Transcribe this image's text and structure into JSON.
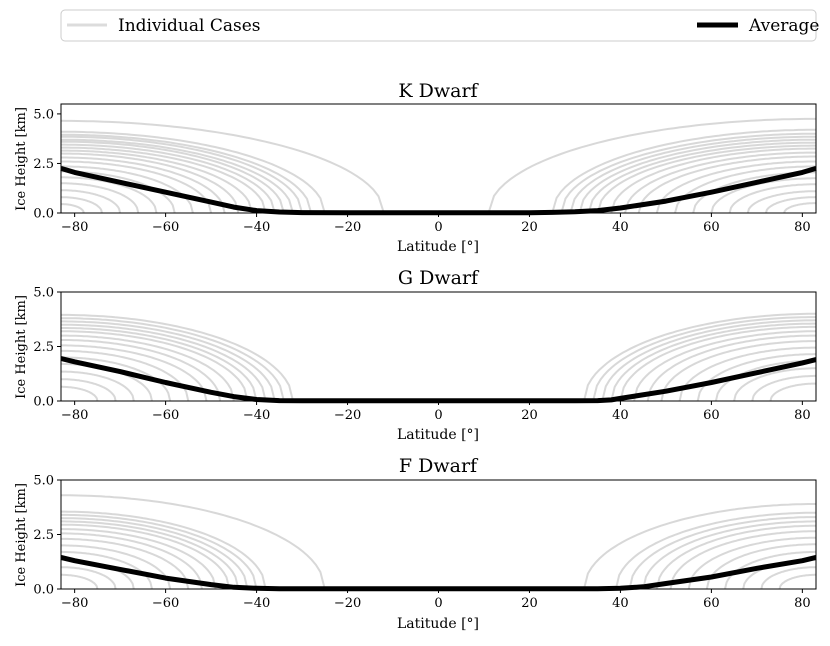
{
  "legend": {
    "individual_label": "Individual Cases",
    "average_label": "Average",
    "individual_color": "#c8c8c8",
    "average_color": "#000000"
  },
  "chart_data": [
    {
      "type": "line",
      "title": "K Dwarf",
      "xlabel": "Latitude [°]",
      "ylabel": "Ice Height [km]",
      "xlim": [
        -83,
        83
      ],
      "ylim": [
        0,
        5.5
      ],
      "xticks": [
        -80,
        -60,
        -40,
        -20,
        0,
        20,
        40,
        60,
        80
      ],
      "yticks": [
        0,
        2.5,
        5.0
      ],
      "ytick_labels": [
        "0.0",
        "2.5",
        "5.0"
      ],
      "xtick_labels": [
        "−80",
        "−60",
        "−40",
        "−20",
        "0",
        "20",
        "40",
        "60",
        "80"
      ],
      "average": {
        "x": [
          -83,
          -80,
          -70,
          -60,
          -50,
          -45,
          -40,
          -35,
          -30,
          -20,
          0,
          20,
          25,
          30,
          35,
          40,
          50,
          60,
          70,
          80,
          83
        ],
        "y": [
          2.25,
          2.05,
          1.55,
          1.05,
          0.55,
          0.3,
          0.12,
          0.05,
          0.02,
          0.01,
          0.01,
          0.01,
          0.03,
          0.06,
          0.12,
          0.25,
          0.6,
          1.05,
          1.55,
          2.05,
          2.25
        ]
      },
      "individual_cases": [
        {
          "side": "left",
          "edge": -12,
          "peak": 4.65
        },
        {
          "side": "left",
          "edge": -25,
          "peak": 4.1
        },
        {
          "side": "left",
          "edge": -28,
          "peak": 3.95
        },
        {
          "side": "left",
          "edge": -30,
          "peak": 3.85
        },
        {
          "side": "left",
          "edge": -32,
          "peak": 3.7
        },
        {
          "side": "left",
          "edge": -34,
          "peak": 3.6
        },
        {
          "side": "left",
          "edge": -36,
          "peak": 3.45
        },
        {
          "side": "left",
          "edge": -38,
          "peak": 3.3
        },
        {
          "side": "left",
          "edge": -41,
          "peak": 3.15
        },
        {
          "side": "left",
          "edge": -44,
          "peak": 3.0
        },
        {
          "side": "left",
          "edge": -47,
          "peak": 2.8
        },
        {
          "side": "left",
          "edge": -50,
          "peak": 2.6
        },
        {
          "side": "left",
          "edge": -54,
          "peak": 2.35
        },
        {
          "side": "left",
          "edge": -58,
          "peak": 2.1
        },
        {
          "side": "left",
          "edge": -62,
          "peak": 1.8
        },
        {
          "side": "left",
          "edge": -66,
          "peak": 1.5
        },
        {
          "side": "left",
          "edge": -70,
          "peak": 1.15
        },
        {
          "side": "left",
          "edge": -74,
          "peak": 0.8
        },
        {
          "side": "left",
          "edge": -78,
          "peak": 0.45
        },
        {
          "side": "right",
          "edge": 11,
          "peak": 4.75
        },
        {
          "side": "right",
          "edge": 25,
          "peak": 4.2
        },
        {
          "side": "right",
          "edge": 27,
          "peak": 4.0
        },
        {
          "side": "right",
          "edge": 29,
          "peak": 3.85
        },
        {
          "side": "right",
          "edge": 31,
          "peak": 3.7
        },
        {
          "side": "right",
          "edge": 33,
          "peak": 3.55
        },
        {
          "side": "right",
          "edge": 35,
          "peak": 3.4
        },
        {
          "side": "right",
          "edge": 38,
          "peak": 3.25
        },
        {
          "side": "right",
          "edge": 41,
          "peak": 3.05
        },
        {
          "side": "right",
          "edge": 44,
          "peak": 2.85
        },
        {
          "side": "right",
          "edge": 48,
          "peak": 2.6
        },
        {
          "side": "right",
          "edge": 52,
          "peak": 2.35
        },
        {
          "side": "right",
          "edge": 56,
          "peak": 2.05
        },
        {
          "side": "right",
          "edge": 60,
          "peak": 1.75
        },
        {
          "side": "right",
          "edge": 64,
          "peak": 1.45
        },
        {
          "side": "right",
          "edge": 68,
          "peak": 1.1
        },
        {
          "side": "right",
          "edge": 72,
          "peak": 0.8
        },
        {
          "side": "right",
          "edge": 76,
          "peak": 0.5
        }
      ]
    },
    {
      "type": "line",
      "title": "G Dwarf",
      "xlabel": "Latitude [°]",
      "ylabel": "Ice Height [km]",
      "xlim": [
        -83,
        83
      ],
      "ylim": [
        0,
        5.0
      ],
      "xticks": [
        -80,
        -60,
        -40,
        -20,
        0,
        20,
        40,
        60,
        80
      ],
      "yticks": [
        0,
        2.5,
        5.0
      ],
      "ytick_labels": [
        "0.0",
        "2.5",
        "5.0"
      ],
      "xtick_labels": [
        "−80",
        "−60",
        "−40",
        "−20",
        "0",
        "20",
        "40",
        "60",
        "80"
      ],
      "average": {
        "x": [
          -83,
          -80,
          -70,
          -60,
          -50,
          -45,
          -40,
          -35,
          -30,
          -20,
          0,
          20,
          30,
          35,
          38,
          40,
          50,
          60,
          70,
          80,
          83
        ],
        "y": [
          1.95,
          1.8,
          1.35,
          0.85,
          0.4,
          0.2,
          0.07,
          0.02,
          0.01,
          0.01,
          0.01,
          0.01,
          0.01,
          0.02,
          0.05,
          0.12,
          0.45,
          0.85,
          1.3,
          1.75,
          1.9
        ]
      },
      "individual_cases": [
        {
          "side": "left",
          "edge": -32,
          "peak": 3.95
        },
        {
          "side": "left",
          "edge": -34,
          "peak": 3.8
        },
        {
          "side": "left",
          "edge": -36,
          "peak": 3.65
        },
        {
          "side": "left",
          "edge": -38,
          "peak": 3.5
        },
        {
          "side": "left",
          "edge": -40,
          "peak": 3.35
        },
        {
          "side": "left",
          "edge": -42,
          "peak": 3.2
        },
        {
          "side": "left",
          "edge": -45,
          "peak": 3.0
        },
        {
          "side": "left",
          "edge": -48,
          "peak": 2.8
        },
        {
          "side": "left",
          "edge": -51,
          "peak": 2.55
        },
        {
          "side": "left",
          "edge": -55,
          "peak": 2.3
        },
        {
          "side": "left",
          "edge": -59,
          "peak": 2.0
        },
        {
          "side": "left",
          "edge": -63,
          "peak": 1.7
        },
        {
          "side": "left",
          "edge": -67,
          "peak": 1.35
        },
        {
          "side": "left",
          "edge": -71,
          "peak": 1.0
        },
        {
          "side": "left",
          "edge": -75,
          "peak": 0.65
        },
        {
          "side": "right",
          "edge": 32,
          "peak": 4.0
        },
        {
          "side": "right",
          "edge": 34,
          "peak": 3.85
        },
        {
          "side": "right",
          "edge": 36,
          "peak": 3.7
        },
        {
          "side": "right",
          "edge": 38,
          "peak": 3.55
        },
        {
          "side": "right",
          "edge": 40,
          "peak": 3.4
        },
        {
          "side": "right",
          "edge": 43,
          "peak": 3.2
        },
        {
          "side": "right",
          "edge": 46,
          "peak": 3.0
        },
        {
          "side": "right",
          "edge": 49,
          "peak": 2.75
        },
        {
          "side": "right",
          "edge": 53,
          "peak": 2.45
        },
        {
          "side": "right",
          "edge": 57,
          "peak": 2.15
        },
        {
          "side": "right",
          "edge": 61,
          "peak": 1.85
        },
        {
          "side": "right",
          "edge": 65,
          "peak": 1.5
        },
        {
          "side": "right",
          "edge": 69,
          "peak": 1.15
        },
        {
          "side": "right",
          "edge": 73,
          "peak": 0.8
        }
      ]
    },
    {
      "type": "line",
      "title": "F Dwarf",
      "xlabel": "Latitude [°]",
      "ylabel": "Ice Height [km]",
      "xlim": [
        -83,
        83
      ],
      "ylim": [
        0,
        5.0
      ],
      "xticks": [
        -80,
        -60,
        -40,
        -20,
        0,
        20,
        40,
        60,
        80
      ],
      "yticks": [
        0,
        2.5,
        5.0
      ],
      "ytick_labels": [
        "0.0",
        "2.5",
        "5.0"
      ],
      "xtick_labels": [
        "−80",
        "−60",
        "−40",
        "−20",
        "0",
        "20",
        "40",
        "60",
        "80"
      ],
      "average": {
        "x": [
          -83,
          -80,
          -70,
          -60,
          -50,
          -45,
          -40,
          -35,
          -30,
          -20,
          0,
          20,
          35,
          40,
          45,
          50,
          60,
          70,
          80,
          83
        ],
        "y": [
          1.45,
          1.3,
          0.9,
          0.5,
          0.2,
          0.08,
          0.03,
          0.01,
          0.01,
          0.01,
          0.01,
          0.01,
          0.01,
          0.03,
          0.1,
          0.25,
          0.55,
          0.95,
          1.3,
          1.45
        ]
      },
      "individual_cases": [
        {
          "side": "left",
          "edge": -25,
          "peak": 4.3
        },
        {
          "side": "left",
          "edge": -38,
          "peak": 3.55
        },
        {
          "side": "left",
          "edge": -40,
          "peak": 3.4
        },
        {
          "side": "left",
          "edge": -42,
          "peak": 3.25
        },
        {
          "side": "left",
          "edge": -44,
          "peak": 3.1
        },
        {
          "side": "left",
          "edge": -46,
          "peak": 2.95
        },
        {
          "side": "left",
          "edge": -49,
          "peak": 2.75
        },
        {
          "side": "left",
          "edge": -52,
          "peak": 2.55
        },
        {
          "side": "left",
          "edge": -55,
          "peak": 2.3
        },
        {
          "side": "left",
          "edge": -59,
          "peak": 2.0
        },
        {
          "side": "left",
          "edge": -63,
          "peak": 1.7
        },
        {
          "side": "left",
          "edge": -67,
          "peak": 1.35
        },
        {
          "side": "left",
          "edge": -71,
          "peak": 1.0
        },
        {
          "side": "left",
          "edge": -75,
          "peak": 0.65
        },
        {
          "side": "right",
          "edge": 32,
          "peak": 3.9
        },
        {
          "side": "right",
          "edge": 39,
          "peak": 3.5
        },
        {
          "side": "right",
          "edge": 42,
          "peak": 3.3
        },
        {
          "side": "right",
          "edge": 45,
          "peak": 3.1
        },
        {
          "side": "right",
          "edge": 48,
          "peak": 2.9
        },
        {
          "side": "right",
          "edge": 51,
          "peak": 2.65
        },
        {
          "side": "right",
          "edge": 55,
          "peak": 2.35
        },
        {
          "side": "right",
          "edge": 59,
          "peak": 2.05
        },
        {
          "side": "right",
          "edge": 63,
          "peak": 1.7
        },
        {
          "side": "right",
          "edge": 67,
          "peak": 1.35
        },
        {
          "side": "right",
          "edge": 71,
          "peak": 1.0
        },
        {
          "side": "right",
          "edge": 75,
          "peak": 0.65
        }
      ]
    }
  ]
}
